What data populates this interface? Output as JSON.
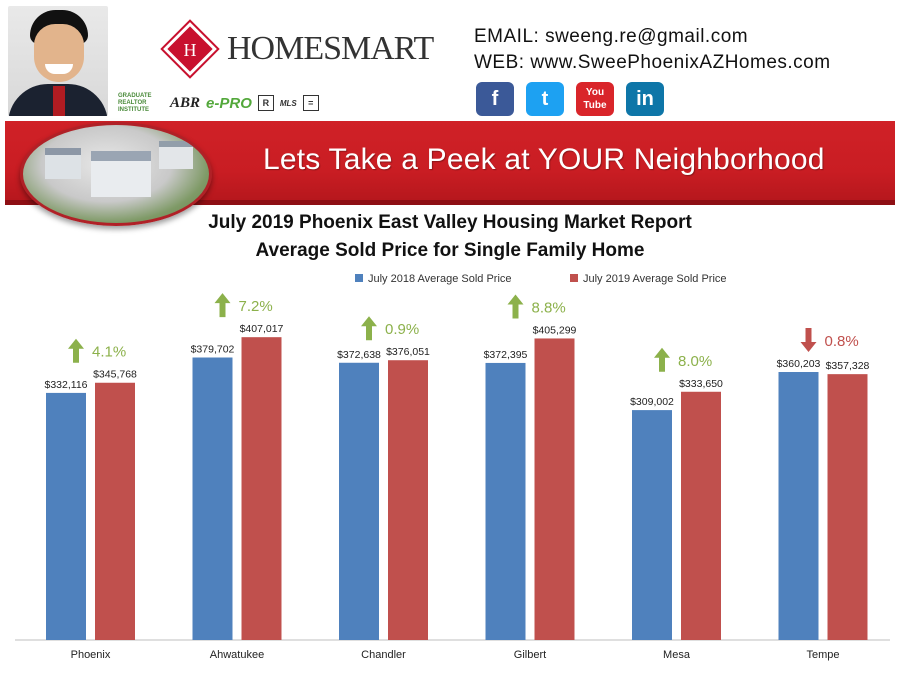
{
  "header": {
    "logo_text": "HOMESMART",
    "logo_mark": "H",
    "badges": [
      "GRADUATE REALTOR INSTITUTE",
      "ABR",
      "e-PRO",
      "R",
      "MLS",
      "="
    ],
    "email_line": "EMAIL:  sweeng.re@gmail.com",
    "web_line": "WEB: www.SweePhoenixAZHomes.com",
    "social": [
      {
        "name": "facebook-icon",
        "label": "f",
        "color": "#3b5998"
      },
      {
        "name": "twitter-icon",
        "label": "t",
        "color": "#1da1f2"
      },
      {
        "name": "youtube-icon",
        "label": "You Tube",
        "color": "#d9252a"
      },
      {
        "name": "linkedin-icon",
        "label": "in",
        "color": "#0e76a8"
      }
    ]
  },
  "banner": {
    "title": "Lets Take a Peek at YOUR Neighborhood",
    "color": "#c91d23"
  },
  "chart_data": {
    "type": "bar",
    "title": "July 2019 Phoenix East Valley Housing Market Report",
    "subtitle": "Average Sold Price for Single Family Home",
    "categories": [
      "Phoenix",
      "Ahwatukee",
      "Chandler",
      "Gilbert",
      "Mesa",
      "Tempe"
    ],
    "series": [
      {
        "name": "July 2018 Average Sold Price",
        "color": "#4f81bd",
        "values": [
          332116,
          379702,
          372638,
          372395,
          309002,
          360203
        ],
        "labels": [
          "$332,116",
          "$379,702",
          "$372,638",
          "$372,395",
          "$309,002",
          "$360,203"
        ]
      },
      {
        "name": "July 2019 Average Sold Price",
        "color": "#c0504d",
        "values": [
          345768,
          407017,
          376051,
          405299,
          333650,
          357328
        ],
        "labels": [
          "$345,768",
          "$407,017",
          "$376,051",
          "$405,299",
          "$333,650",
          "$357,328"
        ]
      }
    ],
    "changes": [
      {
        "label": "4.1%",
        "direction": "up"
      },
      {
        "label": "7.2%",
        "direction": "up"
      },
      {
        "label": "0.9%",
        "direction": "up"
      },
      {
        "label": "8.8%",
        "direction": "up"
      },
      {
        "label": "8.0%",
        "direction": "up"
      },
      {
        "label": "0.8%",
        "direction": "down"
      }
    ],
    "change_colors": {
      "up": "#8cb14b",
      "down": "#c0504d"
    },
    "ylim": [
      0,
      500000
    ],
    "y_axis_visible": false,
    "grid": false,
    "legend_position": "top-center"
  }
}
